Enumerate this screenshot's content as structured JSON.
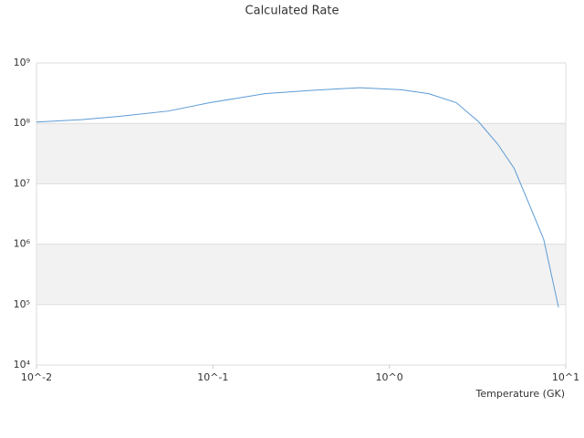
{
  "chart_data": {
    "type": "line",
    "title": "Calculated Rate",
    "x_label": "Temperature (GK)",
    "x": [
      0.01,
      0.018,
      0.029,
      0.056,
      0.096,
      0.197,
      0.357,
      0.68,
      1.17,
      1.67,
      2.4,
      3.2,
      4.1,
      5.1,
      6.2,
      7.5,
      9.1
    ],
    "series": [
      {
        "color": "#5b9bd5",
        "values": [
          105000000,
          115000000,
          130000000,
          160000000,
          220000000,
          310000000,
          350000000,
          390000000,
          360000000,
          310000000,
          220000000,
          107000000,
          46000000,
          18000000,
          4600000,
          1200000,
          90000
        ]
      }
    ],
    "xlim": [
      0.01,
      10
    ],
    "ylim": [
      10000,
      1000000000
    ],
    "xticks": [
      {
        "value": 0.01,
        "label": "10^-2"
      },
      {
        "value": 0.1,
        "label": "10^-1"
      },
      {
        "value": 1,
        "label": "10^0"
      },
      {
        "value": 10,
        "label": "10^1"
      }
    ],
    "yticks": [
      {
        "value": 10000,
        "label": "10⁴"
      },
      {
        "value": 100000,
        "label": "10⁵"
      },
      {
        "value": 1000000,
        "label": "10⁶"
      },
      {
        "value": 10000000,
        "label": "10⁷"
      },
      {
        "value": 100000000,
        "label": "10⁸"
      },
      {
        "value": 1000000000,
        "label": "10⁹"
      }
    ],
    "x_log": true,
    "y_log": true,
    "grid": true
  }
}
